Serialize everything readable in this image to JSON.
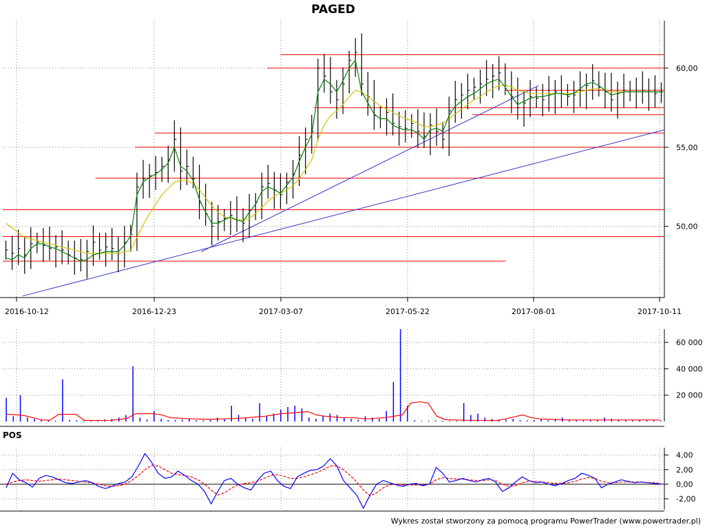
{
  "chart_data": [
    {
      "type": "line",
      "title": "PAGED",
      "x_labels": [
        "2016-10-12",
        "2016-12-23",
        "2017-03-07",
        "2017-05-22",
        "2017-08-01",
        "2017-10-11"
      ],
      "y_ticks": [
        "60,00",
        "55,00",
        "50,00"
      ],
      "y_tick_values": [
        60,
        55,
        50
      ],
      "ylim": [
        45.5,
        63
      ],
      "grid": true,
      "series": [
        {
          "kind": "price-bars",
          "values": [
            48.5,
            48.3,
            48.6,
            48.2,
            48.9,
            49.0,
            48.8,
            48.6,
            48.7,
            48.5,
            48.2,
            48.0,
            47.9,
            48.4,
            49.0,
            48.5,
            48.7,
            48.6,
            48.3,
            49.0,
            49.5,
            52.5,
            53.0,
            53.2,
            53.4,
            53.8,
            54.2,
            55.5,
            53.5,
            53.8,
            53.0,
            51.5,
            50.8,
            50.0,
            50.3,
            50.5,
            50.7,
            50.4,
            50.2,
            51.0,
            51.5,
            52.5,
            52.7,
            52.3,
            52.0,
            52.8,
            53.3,
            54.5,
            55.5,
            56.0,
            60.0,
            59.5,
            58.5,
            58.0,
            59.0,
            60.5,
            61.0,
            59.0,
            58.2,
            57.0,
            56.8,
            57.2,
            56.5,
            56.3,
            56.2,
            56.5,
            56.0,
            55.7,
            56.4,
            56.0,
            55.5,
            57.3,
            58.0,
            58.3,
            58.6,
            58.8,
            59.0,
            59.3,
            59.5,
            59.7,
            58.9,
            58.2,
            57.5,
            57.8,
            58.2,
            58.1,
            58.0,
            58.3,
            58.5,
            58.4,
            58.2,
            58.3,
            58.6,
            58.9,
            59.2,
            58.8,
            58.5,
            58.0,
            58.4,
            58.6,
            58.5,
            58.5,
            58.6,
            58.5,
            58.4,
            58.5
          ],
          "color": "#000000"
        },
        {
          "kind": "fast-ma",
          "values": [
            48.0,
            47.9,
            48.2,
            48.0,
            48.6,
            48.9,
            48.9,
            48.7,
            48.6,
            48.4,
            48.2,
            48.0,
            47.8,
            47.9,
            48.2,
            48.3,
            48.4,
            48.4,
            48.4,
            48.8,
            49.4,
            52.0,
            52.8,
            53.1,
            53.3,
            53.6,
            54.0,
            55.0,
            53.8,
            53.5,
            52.9,
            51.7,
            50.9,
            50.2,
            50.2,
            50.4,
            50.6,
            50.4,
            50.3,
            50.9,
            51.4,
            52.2,
            52.5,
            52.3,
            52.1,
            52.6,
            53.1,
            54.1,
            55.0,
            55.8,
            58.5,
            59.3,
            59.0,
            58.5,
            59.2,
            60.0,
            60.5,
            58.5,
            57.8,
            57.1,
            56.8,
            56.8,
            56.4,
            56.2,
            56.1,
            56.1,
            55.9,
            55.5,
            56.1,
            56.2,
            56.0,
            57.0,
            57.6,
            57.9,
            58.2,
            58.4,
            58.7,
            59.0,
            59.2,
            59.3,
            58.8,
            58.2,
            57.7,
            57.9,
            58.1,
            58.2,
            58.2,
            58.3,
            58.4,
            58.4,
            58.3,
            58.4,
            58.7,
            59.0,
            59.1,
            58.9,
            58.6,
            58.3,
            58.4,
            58.5,
            58.5,
            58.5,
            58.5,
            58.5,
            58.5,
            58.5
          ],
          "color": "#008000"
        },
        {
          "kind": "slow-ma",
          "values": [
            50.2,
            49.9,
            49.6,
            49.3,
            49.2,
            49.1,
            49.0,
            48.9,
            48.8,
            48.7,
            48.6,
            48.5,
            48.4,
            48.3,
            48.3,
            48.3,
            48.3,
            48.3,
            48.3,
            48.4,
            48.5,
            49.3,
            50.1,
            50.8,
            51.4,
            52.0,
            52.4,
            52.8,
            52.9,
            52.9,
            52.7,
            52.3,
            51.8,
            51.3,
            50.9,
            50.6,
            50.5,
            50.4,
            50.4,
            50.5,
            50.8,
            51.2,
            51.6,
            51.9,
            52.1,
            52.3,
            52.6,
            53.0,
            53.6,
            54.2,
            55.5,
            56.4,
            57.0,
            57.3,
            57.7,
            58.2,
            58.6,
            58.5,
            58.2,
            57.9,
            57.6,
            57.4,
            57.2,
            57.0,
            56.8,
            56.7,
            56.5,
            56.3,
            56.3,
            56.4,
            56.5,
            56.8,
            57.1,
            57.4,
            57.7,
            58.0,
            58.2,
            58.5,
            58.7,
            58.9,
            58.9,
            58.8,
            58.6,
            58.5,
            58.4,
            58.4,
            58.4,
            58.4,
            58.4,
            58.4,
            58.4,
            58.4,
            58.5,
            58.6,
            58.7,
            58.7,
            58.6,
            58.5,
            58.5,
            58.5,
            58.5,
            58.5,
            58.5,
            58.5,
            58.5,
            58.5
          ],
          "color": "#d4c200"
        }
      ],
      "horizontal_levels": [
        {
          "y": 60.85,
          "from": 0.42
        },
        {
          "y": 60.0,
          "from": 0.4
        },
        {
          "y": 58.6,
          "from": 0.76
        },
        {
          "y": 57.5,
          "from": 0.47
        },
        {
          "y": 57.05,
          "from": 0.71
        },
        {
          "y": 55.9,
          "from": 0.23
        },
        {
          "y": 55.0,
          "from": 0.2
        },
        {
          "y": 53.05,
          "from": 0.14
        },
        {
          "y": 51.05,
          "from": 0.0
        },
        {
          "y": 49.35,
          "from": 0.0
        },
        {
          "y": 47.8,
          "from": 0.0,
          "to": 0.76
        }
      ],
      "trend_lines": [
        {
          "x0": 0.03,
          "y0": 45.6,
          "x1": 1.0,
          "y1": 56.1
        },
        {
          "x0": 0.3,
          "y0": 48.4,
          "x1": 0.81,
          "y1": 58.9
        }
      ]
    },
    {
      "type": "bar",
      "title": "",
      "y_ticks": [
        "60 000",
        "40 000",
        "20 000"
      ],
      "y_tick_values": [
        60000,
        40000,
        20000
      ],
      "ylim": [
        0,
        70000
      ],
      "series": [
        {
          "kind": "volume",
          "values": [
            18000,
            4000,
            20000,
            3000,
            2000,
            1500,
            1000,
            800,
            32000,
            1200,
            900,
            700,
            600,
            800,
            1500,
            2000,
            3000,
            5000,
            42000,
            3000,
            1500,
            8000,
            2000,
            1000,
            1200,
            1500,
            2000,
            1000,
            900,
            1200,
            3000,
            2000,
            12000,
            5000,
            3000,
            2000,
            14000,
            4000,
            6000,
            9000,
            11000,
            12000,
            10000,
            3000,
            2000,
            4000,
            6000,
            5000,
            3000,
            2000,
            1500,
            4000,
            3000,
            2000,
            8000,
            30000,
            70000,
            12000,
            1000,
            500,
            600,
            800,
            700,
            600,
            500,
            14000,
            5000,
            6000,
            3000,
            2000,
            1000,
            1500,
            2000,
            1000,
            800,
            1200,
            1500,
            1000,
            2000,
            3000,
            1500,
            1000,
            800,
            1200,
            1000,
            3000,
            2000,
            1500,
            1000,
            800,
            1000,
            900,
            800,
            700
          ],
          "color": "#0000ff"
        },
        {
          "kind": "volume-ma",
          "values": [
            5500,
            5200,
            4500,
            3000,
            1200,
            1000,
            5500,
            5500,
            5500,
            900,
            800,
            800,
            900,
            1500,
            2500,
            6000,
            6000,
            6000,
            5000,
            3000,
            2500,
            2200,
            2000,
            1800,
            1800,
            2000,
            2200,
            2400,
            3000,
            3500,
            4000,
            5000,
            6000,
            6500,
            7000,
            7500,
            5000,
            4000,
            3500,
            3000,
            3000,
            2500,
            2000,
            2500,
            3000,
            4000,
            5000,
            14000,
            15000,
            14000,
            4000,
            1500,
            1200,
            1000,
            900,
            900,
            800,
            800,
            2000,
            3500,
            5000,
            3000,
            2000,
            1800,
            1500,
            1200,
            1200,
            1200,
            1200,
            1200,
            1200,
            1200,
            1200,
            1200,
            1200,
            1200,
            1200
          ],
          "color": "#ff0000"
        }
      ]
    },
    {
      "type": "line",
      "title": "POS",
      "y_ticks": [
        "4,00",
        "2,00",
        "0,00",
        "-2,00"
      ],
      "y_tick_values": [
        4,
        2,
        0,
        -2
      ],
      "ylim": [
        -3.5,
        5
      ],
      "series": [
        {
          "kind": "oscillator",
          "values": [
            -0.5,
            1.5,
            0.6,
            0.2,
            -0.4,
            0.8,
            1.2,
            1.0,
            0.6,
            0.2,
            0.1,
            0.3,
            0.5,
            0.2,
            -0.3,
            -0.6,
            -0.3,
            0.1,
            0.3,
            1.0,
            2.5,
            4.2,
            3.0,
            1.5,
            0.8,
            1.0,
            1.8,
            1.2,
            0.5,
            0.0,
            -1.0,
            -2.7,
            -1.0,
            0.5,
            0.8,
            0.0,
            -0.5,
            -0.8,
            0.5,
            1.5,
            1.8,
            0.5,
            -0.3,
            -0.6,
            1.0,
            1.5,
            1.9,
            2.0,
            2.5,
            3.5,
            2.5,
            0.5,
            -0.5,
            -1.5,
            -3.3,
            -1.5,
            0.0,
            0.5,
            0.2,
            -0.1,
            -0.3,
            0.0,
            0.1,
            -0.2,
            0.0,
            2.3,
            1.5,
            0.3,
            0.5,
            0.8,
            0.5,
            0.3,
            0.6,
            0.8,
            0.3,
            -1.0,
            -0.5,
            0.3,
            1.0,
            0.5,
            0.2,
            0.3,
            0.0,
            -0.2,
            0.1,
            0.5,
            0.8,
            1.5,
            1.2,
            0.8,
            -0.5,
            0.0,
            0.3,
            0.6,
            0.4,
            0.2,
            0.3,
            0.2,
            0.1,
            0.0
          ],
          "color": "#0000ff"
        },
        {
          "kind": "signal",
          "values": [
            0.0,
            0.3,
            0.5,
            0.6,
            0.5,
            0.4,
            0.5,
            0.6,
            0.7,
            0.6,
            0.5,
            0.4,
            0.3,
            0.2,
            0.0,
            -0.2,
            -0.3,
            -0.2,
            0.0,
            0.5,
            1.2,
            2.0,
            2.6,
            2.5,
            2.0,
            1.5,
            1.3,
            1.2,
            1.0,
            0.6,
            0.0,
            -0.8,
            -1.5,
            -1.2,
            -0.6,
            -0.1,
            0.1,
            0.2,
            0.4,
            0.8,
            1.2,
            1.3,
            1.1,
            0.8,
            0.8,
            1.0,
            1.3,
            1.6,
            2.0,
            2.5,
            2.5,
            2.0,
            1.2,
            0.3,
            -0.8,
            -1.6,
            -1.2,
            -0.5,
            -0.1,
            0.0,
            -0.1,
            -0.1,
            -0.1,
            -0.1,
            0.0,
            0.6,
            0.9,
            0.8,
            0.7,
            0.7,
            0.6,
            0.5,
            0.5,
            0.6,
            0.5,
            0.0,
            -0.3,
            -0.2,
            0.2,
            0.4,
            0.4,
            0.3,
            0.2,
            0.1,
            0.1,
            0.2,
            0.4,
            0.7,
            0.9,
            0.8,
            0.4,
            0.2,
            0.2,
            0.3,
            0.3,
            0.3,
            0.3,
            0.2,
            0.2,
            0.1
          ],
          "color": "#ff0000"
        }
      ]
    }
  ],
  "footer": "Wykres został stworzony za pomocą programu PowerTrader (www.powertrader.pl)",
  "colors": {
    "grid": "#808080",
    "level_line": "#ff0000",
    "trend_line": "#3333cc",
    "axis": "#000000"
  }
}
